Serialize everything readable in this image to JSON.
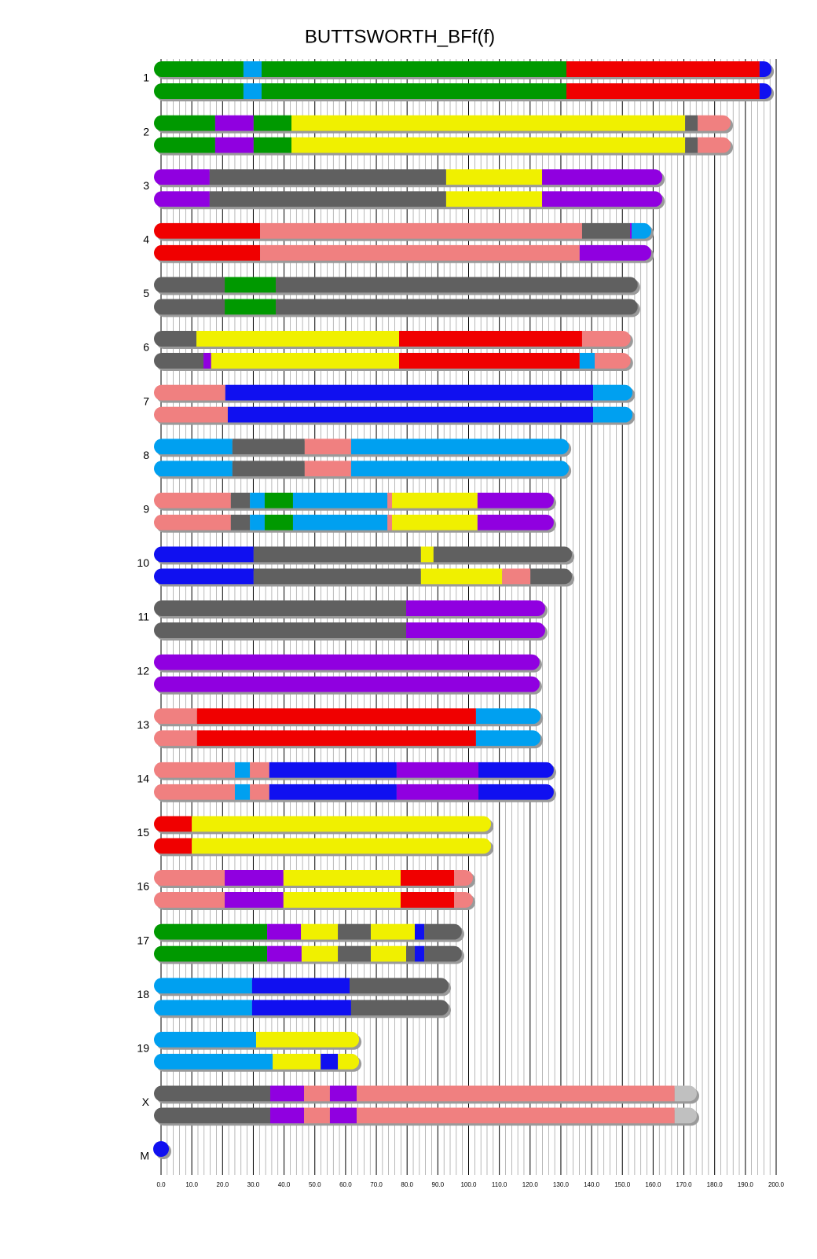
{
  "chart_data": {
    "type": "chromosome",
    "title": "BUTTSWORTH_BFf(f)",
    "xlim": [
      0,
      200
    ],
    "grid": true,
    "minor_grid_step": 2,
    "xticks": [
      {
        "value": 0,
        "label": "0.0"
      },
      {
        "value": 10,
        "label": "10.0"
      },
      {
        "value": 20,
        "label": "20.0"
      },
      {
        "value": 30,
        "label": "30.0"
      },
      {
        "value": 40,
        "label": "40.0"
      },
      {
        "value": 50,
        "label": "50.0"
      },
      {
        "value": 60,
        "label": "60.0"
      },
      {
        "value": 70,
        "label": "70.0"
      },
      {
        "value": 80,
        "label": "80.0"
      },
      {
        "value": 90,
        "label": "90.0"
      },
      {
        "value": 100,
        "label": "100.0"
      },
      {
        "value": 110,
        "label": "110.0"
      },
      {
        "value": 120,
        "label": "120.0"
      },
      {
        "value": 130,
        "label": "130.0"
      },
      {
        "value": 140,
        "label": "140.0"
      },
      {
        "value": 150,
        "label": "150.0"
      },
      {
        "value": 160,
        "label": "160.0"
      },
      {
        "value": 170,
        "label": "170.0"
      },
      {
        "value": 180,
        "label": "180.0"
      },
      {
        "value": 190,
        "label": "190.0"
      },
      {
        "value": 200,
        "label": "200.0"
      }
    ],
    "chromosomes": [
      {
        "name": "1",
        "haplotypes": [
          [
            [
              0,
              26.8,
              "#009900"
            ],
            [
              26.8,
              32.7,
              "#00a0f0"
            ],
            [
              32.7,
              131.8,
              "#009900"
            ],
            [
              131.8,
              194.6,
              "#f00000"
            ],
            [
              194.6,
              198.5,
              "#1010f0"
            ]
          ],
          [
            [
              0,
              26.8,
              "#009900"
            ],
            [
              26.8,
              32.7,
              "#00a0f0"
            ],
            [
              32.7,
              131.8,
              "#009900"
            ],
            [
              131.8,
              194.6,
              "#f00000"
            ],
            [
              194.6,
              198.5,
              "#1010f0"
            ]
          ]
        ]
      },
      {
        "name": "2",
        "haplotypes": [
          [
            [
              0,
              17.6,
              "#009900"
            ],
            [
              17.6,
              30.1,
              "#9000e0"
            ],
            [
              30.1,
              42.4,
              "#009900"
            ],
            [
              42.4,
              170.4,
              "#f0f000"
            ],
            [
              170.4,
              174.5,
              "#606060"
            ],
            [
              174.5,
              185.2,
              "#f08080"
            ]
          ],
          [
            [
              0,
              17.6,
              "#009900"
            ],
            [
              17.6,
              30.1,
              "#9000e0"
            ],
            [
              30.1,
              42.4,
              "#009900"
            ],
            [
              42.4,
              170.4,
              "#f0f000"
            ],
            [
              170.4,
              174.5,
              "#606060"
            ],
            [
              174.5,
              185.2,
              "#f08080"
            ]
          ]
        ]
      },
      {
        "name": "3",
        "haplotypes": [
          [
            [
              0,
              15.8,
              "#9000e0"
            ],
            [
              15.8,
              92.7,
              "#606060"
            ],
            [
              92.7,
              123.9,
              "#f0f000"
            ],
            [
              123.9,
              163,
              "#9000e0"
            ]
          ],
          [
            [
              0,
              15.8,
              "#9000e0"
            ],
            [
              15.8,
              92.7,
              "#606060"
            ],
            [
              92.7,
              123.9,
              "#f0f000"
            ],
            [
              123.9,
              163,
              "#9000e0"
            ]
          ]
        ]
      },
      {
        "name": "4",
        "haplotypes": [
          [
            [
              0,
              32.2,
              "#f00000"
            ],
            [
              32.2,
              136.9,
              "#f08080"
            ],
            [
              136.9,
              152.5,
              "#606060"
            ],
            [
              152.5,
              153,
              "#9000e0"
            ],
            [
              153,
              159.4,
              "#00a0f0"
            ]
          ],
          [
            [
              0,
              32.2,
              "#f00000"
            ],
            [
              32.2,
              136.1,
              "#f08080"
            ],
            [
              136.1,
              159.4,
              "#9000e0"
            ]
          ]
        ]
      },
      {
        "name": "5",
        "haplotypes": [
          [
            [
              0,
              20.7,
              "#606060"
            ],
            [
              20.7,
              37.3,
              "#009900"
            ],
            [
              37.3,
              155,
              "#606060"
            ]
          ],
          [
            [
              0,
              20.7,
              "#606060"
            ],
            [
              20.7,
              37.3,
              "#009900"
            ],
            [
              37.3,
              155,
              "#606060"
            ]
          ]
        ]
      },
      {
        "name": "6",
        "haplotypes": [
          [
            [
              0,
              11.5,
              "#606060"
            ],
            [
              11.5,
              77.4,
              "#f0f000"
            ],
            [
              77.4,
              136.9,
              "#f00000"
            ],
            [
              136.9,
              152.7,
              "#f08080"
            ]
          ],
          [
            [
              0,
              13.8,
              "#606060"
            ],
            [
              13.8,
              16.3,
              "#9000e0"
            ],
            [
              16.3,
              77.4,
              "#f0f000"
            ],
            [
              77.4,
              136.1,
              "#f00000"
            ],
            [
              136.1,
              141,
              "#00a0f0"
            ],
            [
              141,
              152.7,
              "#f08080"
            ]
          ]
        ]
      },
      {
        "name": "7",
        "haplotypes": [
          [
            [
              0,
              20.9,
              "#f08080"
            ],
            [
              20.9,
              140.5,
              "#1010f0"
            ],
            [
              140.5,
              153.3,
              "#00a0f0"
            ]
          ],
          [
            [
              0,
              21.7,
              "#f08080"
            ],
            [
              21.7,
              140.5,
              "#1010f0"
            ],
            [
              140.5,
              153.3,
              "#00a0f0"
            ]
          ]
        ]
      },
      {
        "name": "8",
        "haplotypes": [
          [
            [
              0,
              23.2,
              "#00a0f0"
            ],
            [
              23.2,
              46.7,
              "#606060"
            ],
            [
              46.7,
              61.8,
              "#f08080"
            ],
            [
              61.8,
              132.6,
              "#00a0f0"
            ]
          ],
          [
            [
              0,
              23.2,
              "#00a0f0"
            ],
            [
              23.2,
              46.7,
              "#606060"
            ],
            [
              46.7,
              61.8,
              "#f08080"
            ],
            [
              61.8,
              132.6,
              "#00a0f0"
            ]
          ]
        ]
      },
      {
        "name": "9",
        "haplotypes": [
          [
            [
              0,
              22.7,
              "#f08080"
            ],
            [
              22.7,
              28.9,
              "#606060"
            ],
            [
              28.9,
              33.7,
              "#00a0f0"
            ],
            [
              33.7,
              42.9,
              "#009900"
            ],
            [
              42.9,
              73.6,
              "#00a0f0"
            ],
            [
              73.6,
              75.1,
              "#f08080"
            ],
            [
              75.1,
              102.9,
              "#f0f000"
            ],
            [
              102.9,
              127.7,
              "#9000e0"
            ]
          ],
          [
            [
              0,
              22.7,
              "#f08080"
            ],
            [
              22.7,
              28.9,
              "#606060"
            ],
            [
              28.9,
              33.7,
              "#00a0f0"
            ],
            [
              33.7,
              42.9,
              "#009900"
            ],
            [
              42.9,
              73.6,
              "#00a0f0"
            ],
            [
              73.6,
              75.1,
              "#f08080"
            ],
            [
              75.1,
              102.9,
              "#f0f000"
            ],
            [
              102.9,
              127.7,
              "#9000e0"
            ]
          ]
        ]
      },
      {
        "name": "10",
        "haplotypes": [
          [
            [
              0,
              30.1,
              "#1010f0"
            ],
            [
              30.1,
              84.5,
              "#606060"
            ],
            [
              84.5,
              88.6,
              "#f0f000"
            ],
            [
              88.6,
              133.6,
              "#606060"
            ]
          ],
          [
            [
              0,
              30.1,
              "#1010f0"
            ],
            [
              30.1,
              84.5,
              "#606060"
            ],
            [
              84.5,
              110.9,
              "#f0f000"
            ],
            [
              110.9,
              120.1,
              "#f08080"
            ],
            [
              120.1,
              133.6,
              "#606060"
            ]
          ]
        ]
      },
      {
        "name": "11",
        "haplotypes": [
          [
            [
              0,
              79.7,
              "#606060"
            ],
            [
              79.7,
              124.9,
              "#9000e0"
            ]
          ],
          [
            [
              0,
              79.7,
              "#606060"
            ],
            [
              79.7,
              124.9,
              "#9000e0"
            ]
          ]
        ]
      },
      {
        "name": "12",
        "haplotypes": [
          [
            [
              0,
              123.1,
              "#9000e0"
            ]
          ],
          [
            [
              0,
              123.1,
              "#9000e0"
            ]
          ]
        ]
      },
      {
        "name": "13",
        "haplotypes": [
          [
            [
              0,
              11.7,
              "#f08080"
            ],
            [
              11.7,
              102.4,
              "#f00000"
            ],
            [
              102.4,
              123.4,
              "#00a0f0"
            ]
          ],
          [
            [
              0,
              11.7,
              "#f08080"
            ],
            [
              11.7,
              102.4,
              "#f00000"
            ],
            [
              102.4,
              123.4,
              "#00a0f0"
            ]
          ]
        ]
      },
      {
        "name": "14",
        "haplotypes": [
          [
            [
              0,
              24,
              "#f08080"
            ],
            [
              24,
              28.9,
              "#00a0f0"
            ],
            [
              28.9,
              35.2,
              "#f08080"
            ],
            [
              35.2,
              76.6,
              "#1010f0"
            ],
            [
              76.6,
              103.2,
              "#9000e0"
            ],
            [
              103.2,
              127.7,
              "#1010f0"
            ]
          ],
          [
            [
              0,
              24,
              "#f08080"
            ],
            [
              24,
              28.9,
              "#00a0f0"
            ],
            [
              28.9,
              35.2,
              "#f08080"
            ],
            [
              35.2,
              76.6,
              "#1010f0"
            ],
            [
              76.6,
              103.2,
              "#9000e0"
            ],
            [
              103.2,
              127.7,
              "#1010f0"
            ]
          ]
        ]
      },
      {
        "name": "15",
        "haplotypes": [
          [
            [
              0,
              10,
              "#f00000"
            ],
            [
              10,
              107.3,
              "#f0f000"
            ]
          ],
          [
            [
              0,
              10,
              "#f00000"
            ],
            [
              10,
              107.3,
              "#f0f000"
            ]
          ]
        ]
      },
      {
        "name": "16",
        "haplotypes": [
          [
            [
              0,
              20.7,
              "#f08080"
            ],
            [
              20.7,
              39.8,
              "#9000e0"
            ],
            [
              39.8,
              77.9,
              "#f0f000"
            ],
            [
              77.9,
              95.3,
              "#f00000"
            ],
            [
              95.3,
              101.4,
              "#f08080"
            ]
          ],
          [
            [
              0,
              20.7,
              "#f08080"
            ],
            [
              20.7,
              39.8,
              "#9000e0"
            ],
            [
              39.8,
              77.9,
              "#f0f000"
            ],
            [
              77.9,
              95.3,
              "#f00000"
            ],
            [
              95.3,
              101.4,
              "#f08080"
            ]
          ]
        ]
      },
      {
        "name": "17",
        "haplotypes": [
          [
            [
              0,
              34.5,
              "#009900"
            ],
            [
              34.5,
              45.5,
              "#9000e0"
            ],
            [
              45.5,
              57.5,
              "#f0f000"
            ],
            [
              57.5,
              68.2,
              "#606060"
            ],
            [
              68.2,
              82.5,
              "#f0f000"
            ],
            [
              82.5,
              85.6,
              "#1010f0"
            ],
            [
              85.6,
              97.8,
              "#606060"
            ]
          ],
          [
            [
              0,
              34.5,
              "#009900"
            ],
            [
              34.5,
              45.7,
              "#9000e0"
            ],
            [
              45.7,
              57.5,
              "#f0f000"
            ],
            [
              57.5,
              68.2,
              "#606060"
            ],
            [
              68.2,
              79.7,
              "#f0f000"
            ],
            [
              79.7,
              82.5,
              "#606060"
            ],
            [
              82.5,
              85.6,
              "#1010f0"
            ],
            [
              85.6,
              97.8,
              "#606060"
            ]
          ]
        ]
      },
      {
        "name": "18",
        "haplotypes": [
          [
            [
              0,
              29.6,
              "#00a0f0"
            ],
            [
              29.6,
              61.3,
              "#1010f0"
            ],
            [
              61.3,
              93.5,
              "#606060"
            ]
          ],
          [
            [
              0,
              29.6,
              "#00a0f0"
            ],
            [
              29.6,
              61.8,
              "#1010f0"
            ],
            [
              61.8,
              93.5,
              "#606060"
            ]
          ]
        ]
      },
      {
        "name": "19",
        "haplotypes": [
          [
            [
              0,
              30.9,
              "#00a0f0"
            ],
            [
              30.9,
              64.4,
              "#f0f000"
            ]
          ],
          [
            [
              0,
              36.3,
              "#00a0f0"
            ],
            [
              36.3,
              51.9,
              "#f0f000"
            ],
            [
              51.9,
              57.5,
              "#1010f0"
            ],
            [
              57.5,
              64.4,
              "#f0f000"
            ]
          ]
        ]
      },
      {
        "name": "X",
        "haplotypes": [
          [
            [
              0,
              35.5,
              "#606060"
            ],
            [
              35.5,
              46.5,
              "#9000e0"
            ],
            [
              46.5,
              54.9,
              "#f08080"
            ],
            [
              54.9,
              63.6,
              "#9000e0"
            ],
            [
              63.6,
              167,
              "#f08080"
            ],
            [
              167,
              174.2,
              "#c0c0c0"
            ]
          ],
          [
            [
              0,
              35.5,
              "#606060"
            ],
            [
              35.5,
              46.5,
              "#9000e0"
            ],
            [
              46.5,
              54.9,
              "#f08080"
            ],
            [
              54.9,
              63.6,
              "#9000e0"
            ],
            [
              63.6,
              167,
              "#f08080"
            ],
            [
              167,
              174.2,
              "#c0c0c0"
            ]
          ]
        ]
      },
      {
        "name": "M",
        "haplotypes": [
          [
            [
              0,
              0,
              "#1010f0"
            ]
          ]
        ]
      }
    ]
  }
}
